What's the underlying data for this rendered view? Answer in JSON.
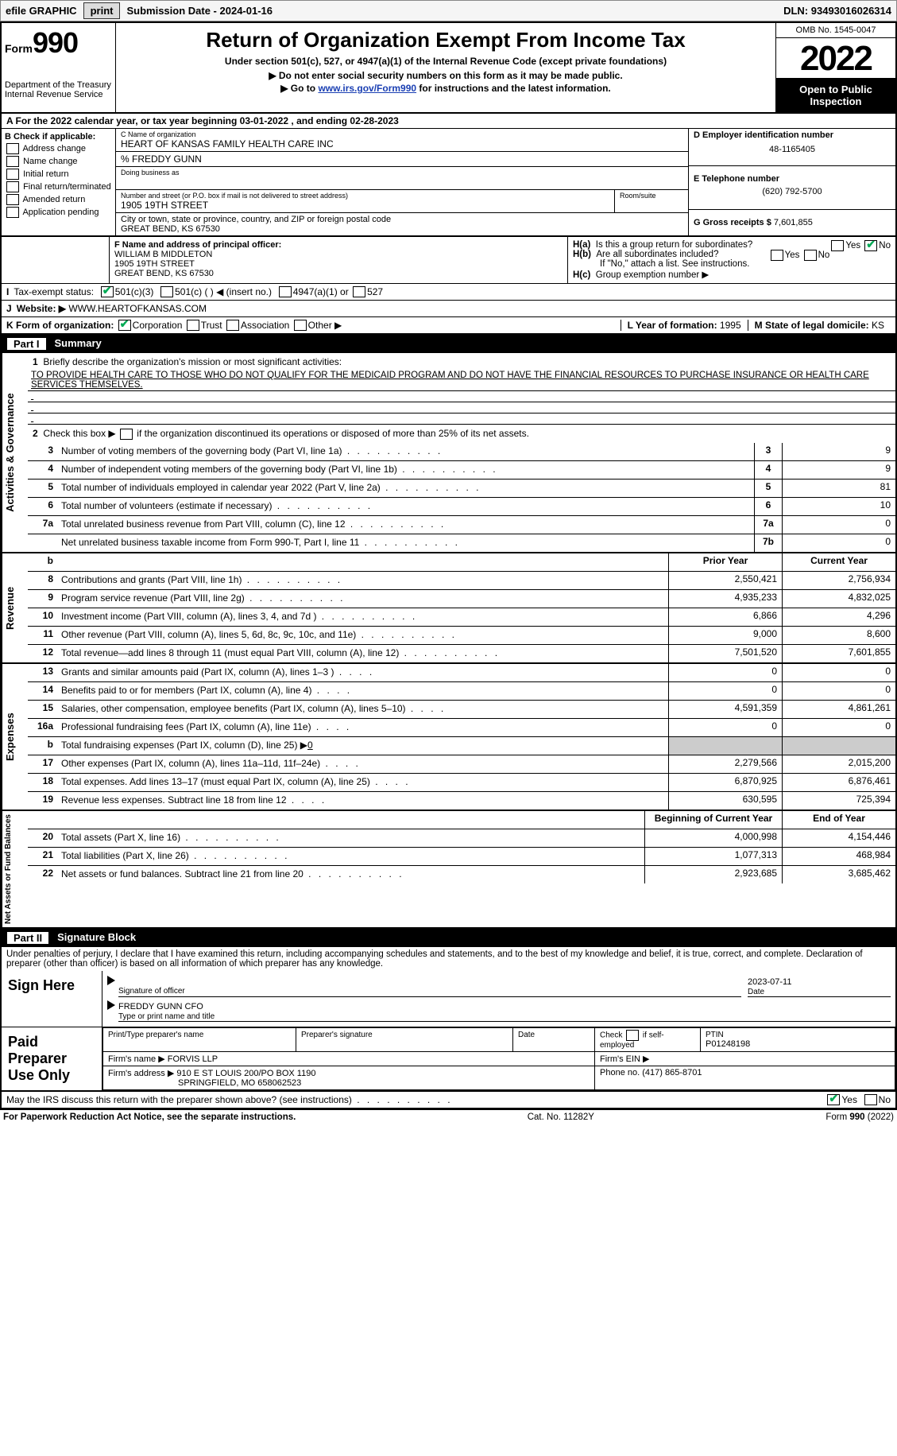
{
  "topbar": {
    "efile_label": "efile GRAPHIC",
    "print_btn": "print",
    "sub_label": "Submission Date - ",
    "sub_date": "2024-01-16",
    "dln_label": "DLN: ",
    "dln": "93493016026314"
  },
  "header": {
    "form_label": "Form",
    "form_no": "990",
    "dept": "Department of the Treasury",
    "irs": "Internal Revenue Service",
    "title": "Return of Organization Exempt From Income Tax",
    "sub1": "Under section 501(c), 527, or 4947(a)(1) of the Internal Revenue Code (except private foundations)",
    "sub2": "▶ Do not enter social security numbers on this form as it may be made public.",
    "sub3_pre": "▶ Go to ",
    "sub3_link": "www.irs.gov/Form990",
    "sub3_post": " for instructions and the latest information.",
    "omb": "OMB No. 1545-0047",
    "year": "2022",
    "open": "Open to Public Inspection"
  },
  "row_a": {
    "prefix": "A For the 2022 calendar year, or tax year beginning ",
    "begin": "03-01-2022",
    "mid": " , and ending ",
    "end": "02-28-2023"
  },
  "b": {
    "title": "B Check if applicable:",
    "opts": [
      "Address change",
      "Name change",
      "Initial return",
      "Final return/terminated",
      "Amended return",
      "Application pending"
    ]
  },
  "c": {
    "label": "C Name of organization",
    "name": "HEART OF KANSAS FAMILY HEALTH CARE INC",
    "care_of": "% FREDDY GUNN",
    "dba_label": "Doing business as",
    "addr_label": "Number and street (or P.O. box if mail is not delivered to street address)",
    "room_label": "Room/suite",
    "addr": "1905 19TH STREET",
    "city_label": "City or town, state or province, country, and ZIP or foreign postal code",
    "city": "GREAT BEND, KS  67530"
  },
  "d": {
    "label": "D Employer identification number",
    "val": "48-1165405"
  },
  "e": {
    "label": "E Telephone number",
    "val": "(620) 792-5700"
  },
  "g": {
    "label": "G Gross receipts $ ",
    "val": "7,601,855"
  },
  "f": {
    "label": "F Name and address of principal officer:",
    "name": "WILLIAM B MIDDLETON",
    "addr": "1905 19TH STREET",
    "city": "GREAT BEND, KS  67530"
  },
  "h": {
    "ha": "Is this a group return for subordinates?",
    "hb": "Are all subordinates included?",
    "hb_note": "If \"No,\" attach a list. See instructions.",
    "hc": "Group exemption number ▶"
  },
  "i": {
    "label": "Tax-exempt status:",
    "o1": "501(c)(3)",
    "o2": "501(c) (   ) ◀ (insert no.)",
    "o3": "4947(a)(1) or",
    "o4": "527"
  },
  "j": {
    "label": "Website: ▶",
    "val": "WWW.HEARTOFKANSAS.COM"
  },
  "k": {
    "label": "K Form of organization:",
    "corp": "Corporation",
    "trust": "Trust",
    "assoc": "Association",
    "other": "Other ▶"
  },
  "l": {
    "label": "L Year of formation: ",
    "val": "1995"
  },
  "m": {
    "label": "M State of legal domicile: ",
    "val": "KS"
  },
  "part1": {
    "hdr_no": "Part I",
    "hdr_title": "Summary",
    "q1_label": "1",
    "q1": "Briefly describe the organization's mission or most significant activities:",
    "mission": "TO PROVIDE HEALTH CARE TO THOSE WHO DO NOT QUALIFY FOR THE MEDICAID PROGRAM AND DO NOT HAVE THE FINANCIAL RESOURCES TO PURCHASE INSURANCE OR HEALTH CARE SERVICES THEMSELVES.",
    "q2": "Check this box ▶",
    "q2_post": " if the organization discontinued its operations or disposed of more than 25% of its net assets.",
    "lines_a": [
      {
        "n": "3",
        "t": "Number of voting members of the governing body (Part VI, line 1a)",
        "b": "3",
        "v": "9"
      },
      {
        "n": "4",
        "t": "Number of independent voting members of the governing body (Part VI, line 1b)",
        "b": "4",
        "v": "9"
      },
      {
        "n": "5",
        "t": "Total number of individuals employed in calendar year 2022 (Part V, line 2a)",
        "b": "5",
        "v": "81"
      },
      {
        "n": "6",
        "t": "Total number of volunteers (estimate if necessary)",
        "b": "6",
        "v": "10"
      },
      {
        "n": "7a",
        "t": "Total unrelated business revenue from Part VIII, column (C), line 12",
        "b": "7a",
        "v": "0"
      },
      {
        "n": "",
        "t": "Net unrelated business taxable income from Form 990-T, Part I, line 11",
        "b": "7b",
        "v": "0"
      }
    ],
    "col_hdr_prior": "Prior Year",
    "col_hdr_curr": "Current Year",
    "lines_rev": [
      {
        "n": "8",
        "t": "Contributions and grants (Part VIII, line 1h)",
        "p": "2,550,421",
        "c": "2,756,934"
      },
      {
        "n": "9",
        "t": "Program service revenue (Part VIII, line 2g)",
        "p": "4,935,233",
        "c": "4,832,025"
      },
      {
        "n": "10",
        "t": "Investment income (Part VIII, column (A), lines 3, 4, and 7d )",
        "p": "6,866",
        "c": "4,296"
      },
      {
        "n": "11",
        "t": "Other revenue (Part VIII, column (A), lines 5, 6d, 8c, 9c, 10c, and 11e)",
        "p": "9,000",
        "c": "8,600"
      },
      {
        "n": "12",
        "t": "Total revenue—add lines 8 through 11 (must equal Part VIII, column (A), line 12)",
        "p": "7,501,520",
        "c": "7,601,855"
      }
    ],
    "lines_exp": [
      {
        "n": "13",
        "t": "Grants and similar amounts paid (Part IX, column (A), lines 1–3 )",
        "p": "0",
        "c": "0"
      },
      {
        "n": "14",
        "t": "Benefits paid to or for members (Part IX, column (A), line 4)",
        "p": "0",
        "c": "0"
      },
      {
        "n": "15",
        "t": "Salaries, other compensation, employee benefits (Part IX, column (A), lines 5–10)",
        "p": "4,591,359",
        "c": "4,861,261"
      },
      {
        "n": "16a",
        "t": "Professional fundraising fees (Part IX, column (A), line 11e)",
        "p": "0",
        "c": "0"
      },
      {
        "n": "b",
        "t": "Total fundraising expenses (Part IX, column (D), line 25) ▶",
        "p": "gray",
        "c": "gray",
        "extra": "0"
      },
      {
        "n": "17",
        "t": "Other expenses (Part IX, column (A), lines 11a–11d, 11f–24e)",
        "p": "2,279,566",
        "c": "2,015,200"
      },
      {
        "n": "18",
        "t": "Total expenses. Add lines 13–17 (must equal Part IX, column (A), line 25)",
        "p": "6,870,925",
        "c": "6,876,461"
      },
      {
        "n": "19",
        "t": "Revenue less expenses. Subtract line 18 from line 12",
        "p": "630,595",
        "c": "725,394"
      }
    ],
    "col_hdr_beg": "Beginning of Current Year",
    "col_hdr_end": "End of Year",
    "lines_net": [
      {
        "n": "20",
        "t": "Total assets (Part X, line 16)",
        "p": "4,000,998",
        "c": "4,154,446"
      },
      {
        "n": "21",
        "t": "Total liabilities (Part X, line 26)",
        "p": "1,077,313",
        "c": "468,984"
      },
      {
        "n": "22",
        "t": "Net assets or fund balances. Subtract line 21 from line 20",
        "p": "2,923,685",
        "c": "3,685,462"
      }
    ],
    "vert_ag": "Activities & Governance",
    "vert_rev": "Revenue",
    "vert_exp": "Expenses",
    "vert_net": "Net Assets or Fund Balances"
  },
  "part2": {
    "hdr_no": "Part II",
    "hdr_title": "Signature Block",
    "decl": "Under penalties of perjury, I declare that I have examined this return, including accompanying schedules and statements, and to the best of my knowledge and belief, it is true, correct, and complete. Declaration of preparer (other than officer) is based on all information of which preparer has any knowledge.",
    "sign_here": "Sign Here",
    "sig_officer": "Signature of officer",
    "date": "Date",
    "date_val": "2023-07-11",
    "officer_name": "FREDDY GUNN CFO",
    "type_name": "Type or print name and title",
    "paid": "Paid Preparer Use Only",
    "pp_name_label": "Print/Type preparer's name",
    "pp_sig_label": "Preparer's signature",
    "pp_date_label": "Date",
    "pp_check": "Check",
    "pp_self": " if self-employed",
    "ptin_label": "PTIN",
    "ptin": "P01248198",
    "firm_name_label": "Firm's name    ▶ ",
    "firm_name": "FORVIS LLP",
    "firm_ein_label": "Firm's EIN ▶",
    "firm_addr_label": "Firm's address ▶ ",
    "firm_addr1": "910 E ST LOUIS 200/PO BOX 1190",
    "firm_addr2": "SPRINGFIELD, MO  658062523",
    "phone_label": "Phone no. ",
    "phone": "(417) 865-8701",
    "may_irs": "May the IRS discuss this return with the preparer shown above? (see instructions)",
    "yes": "Yes",
    "no": "No"
  },
  "footer": {
    "left": "For Paperwork Reduction Act Notice, see the separate instructions.",
    "mid": "Cat. No. 11282Y",
    "right": "Form 990 (2022)"
  }
}
